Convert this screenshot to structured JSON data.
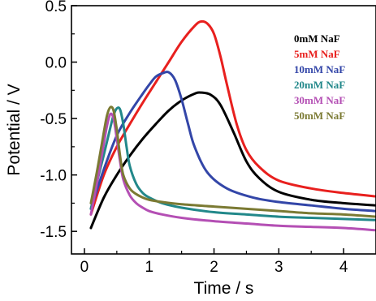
{
  "chart_data": {
    "type": "line",
    "title": "",
    "xlabel": "Time / s",
    "ylabel": "Potential / V",
    "xlim": [
      -0.2,
      4.5
    ],
    "ylim": [
      -1.7,
      0.5
    ],
    "xticks": [
      0,
      1,
      2,
      3,
      4
    ],
    "yticks": [
      0.5,
      0.0,
      -0.5,
      -1.0,
      -1.5
    ],
    "ytick_labels": [
      "0.5",
      "0.0",
      "-0.5",
      "-1.0",
      "-1.5"
    ],
    "grid": false,
    "legend_position": "top-right",
    "series": [
      {
        "name": "0mM NaF",
        "color": "#000000",
        "x": [
          0.1,
          0.3,
          0.5,
          0.7,
          0.9,
          1.1,
          1.3,
          1.5,
          1.7,
          1.8,
          1.95,
          2.1,
          2.3,
          2.5,
          2.7,
          3.0,
          3.5,
          4.0,
          4.5
        ],
        "y": [
          -1.47,
          -1.2,
          -1.0,
          -0.83,
          -0.68,
          -0.55,
          -0.43,
          -0.34,
          -0.28,
          -0.27,
          -0.29,
          -0.38,
          -0.62,
          -0.88,
          -1.03,
          -1.15,
          -1.22,
          -1.25,
          -1.27
        ]
      },
      {
        "name": "5mM NaF",
        "color": "#e8201e",
        "x": [
          0.1,
          0.3,
          0.5,
          0.7,
          0.9,
          1.1,
          1.3,
          1.5,
          1.7,
          1.8,
          1.9,
          2.0,
          2.1,
          2.2,
          2.35,
          2.5,
          2.7,
          3.0,
          3.5,
          4.0,
          4.5
        ],
        "y": [
          -1.35,
          -1.0,
          -0.75,
          -0.55,
          -0.36,
          -0.18,
          0.0,
          0.18,
          0.32,
          0.36,
          0.34,
          0.25,
          0.05,
          -0.2,
          -0.55,
          -0.78,
          -0.93,
          -1.05,
          -1.12,
          -1.16,
          -1.19
        ]
      },
      {
        "name": "10mM NaF",
        "color": "#3346a8",
        "x": [
          0.1,
          0.3,
          0.5,
          0.7,
          0.9,
          1.0,
          1.1,
          1.2,
          1.3,
          1.4,
          1.5,
          1.6,
          1.7,
          1.9,
          2.2,
          2.6,
          3.0,
          3.5,
          4.0,
          4.5
        ],
        "y": [
          -1.3,
          -0.95,
          -0.65,
          -0.45,
          -0.28,
          -0.2,
          -0.13,
          -0.1,
          -0.09,
          -0.16,
          -0.33,
          -0.55,
          -0.75,
          -0.98,
          -1.12,
          -1.2,
          -1.24,
          -1.27,
          -1.3,
          -1.32
        ]
      },
      {
        "name": "20mM NaF",
        "color": "#22888a",
        "x": [
          0.1,
          0.2,
          0.3,
          0.4,
          0.45,
          0.5,
          0.55,
          0.6,
          0.65,
          0.7,
          0.8,
          0.9,
          1.0,
          1.2,
          1.5,
          2.0,
          2.5,
          3.0,
          3.5,
          4.0,
          4.5
        ],
        "y": [
          -1.3,
          -1.05,
          -0.82,
          -0.58,
          -0.47,
          -0.41,
          -0.42,
          -0.55,
          -0.75,
          -0.92,
          -1.08,
          -1.16,
          -1.2,
          -1.25,
          -1.29,
          -1.33,
          -1.35,
          -1.37,
          -1.38,
          -1.39,
          -1.4
        ]
      },
      {
        "name": "30mM NaF",
        "color": "#b44fb4",
        "x": [
          0.1,
          0.2,
          0.3,
          0.35,
          0.4,
          0.45,
          0.5,
          0.55,
          0.6,
          0.7,
          0.8,
          0.9,
          1.0,
          1.2,
          1.5,
          2.0,
          2.5,
          3.0,
          3.5,
          4.0,
          4.5
        ],
        "y": [
          -1.35,
          -1.05,
          -0.72,
          -0.56,
          -0.46,
          -0.5,
          -0.68,
          -0.88,
          -1.04,
          -1.18,
          -1.25,
          -1.29,
          -1.32,
          -1.35,
          -1.38,
          -1.41,
          -1.43,
          -1.45,
          -1.46,
          -1.47,
          -1.49
        ]
      },
      {
        "name": "50mM NaF",
        "color": "#7b7a33",
        "x": [
          0.1,
          0.2,
          0.3,
          0.35,
          0.4,
          0.45,
          0.5,
          0.55,
          0.6,
          0.7,
          0.8,
          0.9,
          1.0,
          1.2,
          1.5,
          2.0,
          2.5,
          3.0,
          3.5,
          4.0,
          4.5
        ],
        "y": [
          -1.25,
          -0.95,
          -0.62,
          -0.47,
          -0.4,
          -0.43,
          -0.6,
          -0.83,
          -1.0,
          -1.12,
          -1.17,
          -1.2,
          -1.22,
          -1.24,
          -1.26,
          -1.28,
          -1.3,
          -1.32,
          -1.34,
          -1.35,
          -1.37
        ]
      }
    ]
  }
}
